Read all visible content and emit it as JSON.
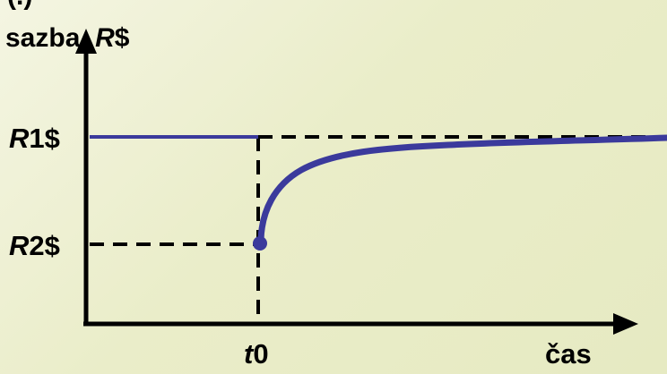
{
  "diagram": {
    "top_label_fragment": "(.)",
    "y_axis_label": {
      "prefix": "sazba, ",
      "italic": "R",
      "suffix": "$"
    },
    "x_axis_label": "čas",
    "levels": [
      {
        "italic": "R",
        "suffix": "1$"
      },
      {
        "italic": "R",
        "suffix": "2$"
      }
    ],
    "time_marker": {
      "italic": "t",
      "suffix": "0"
    }
  },
  "colors": {
    "series": "#3b3a9c",
    "axes": "#000000",
    "background": "#eceecf"
  }
}
